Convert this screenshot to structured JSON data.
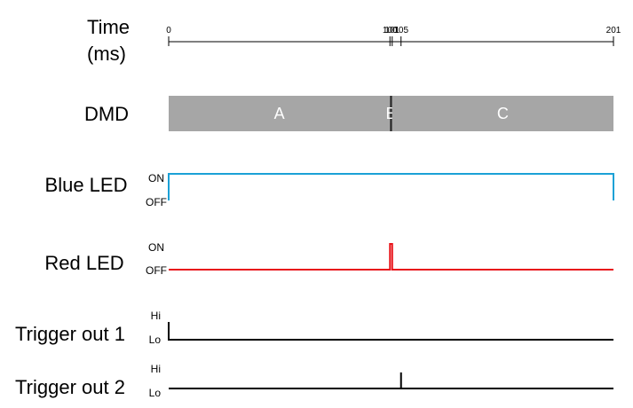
{
  "time_axis": {
    "title_line1": "Time",
    "title_line2": "(ms)",
    "ticks": [
      {
        "value": 0,
        "label": "0"
      },
      {
        "value": 100,
        "label": "100"
      },
      {
        "value": 101,
        "label": "101"
      },
      {
        "value": 105,
        "label": "105"
      },
      {
        "value": 201,
        "label": "201"
      }
    ],
    "min": 0,
    "max": 201
  },
  "rows": {
    "dmd": {
      "label": "DMD",
      "segments": [
        {
          "label": "A",
          "start": 0,
          "end": 100,
          "color": "#a6a6a6"
        },
        {
          "label": "B",
          "start": 100,
          "end": 101,
          "color": "#262626"
        },
        {
          "label": "C",
          "start": 101,
          "end": 201,
          "color": "#a6a6a6"
        }
      ]
    },
    "blue_led": {
      "label": "Blue LED",
      "high_label": "ON",
      "low_label": "OFF",
      "color": "#1ba1d6",
      "waveform": [
        [
          0,
          0
        ],
        [
          0,
          1
        ],
        [
          201,
          1
        ],
        [
          201,
          0
        ]
      ]
    },
    "red_led": {
      "label": "Red LED",
      "high_label": "ON",
      "low_label": "OFF",
      "color": "#e8141b",
      "waveform": [
        [
          0,
          0
        ],
        [
          100,
          0
        ],
        [
          100,
          1
        ],
        [
          101,
          1
        ],
        [
          101,
          0
        ],
        [
          201,
          0
        ]
      ]
    },
    "trigger1": {
      "label": "Trigger out 1",
      "high_label": "Hi",
      "low_label": "Lo",
      "color": "#000000",
      "waveform": [
        [
          0,
          1
        ],
        [
          0,
          0
        ],
        [
          201,
          0
        ]
      ]
    },
    "trigger2": {
      "label": "Trigger out 2",
      "high_label": "Hi",
      "low_label": "Lo",
      "color": "#000000",
      "waveform": [
        [
          0,
          0
        ],
        [
          105,
          0
        ],
        [
          105,
          0.55
        ],
        [
          105,
          0
        ],
        [
          201,
          0
        ]
      ]
    }
  }
}
